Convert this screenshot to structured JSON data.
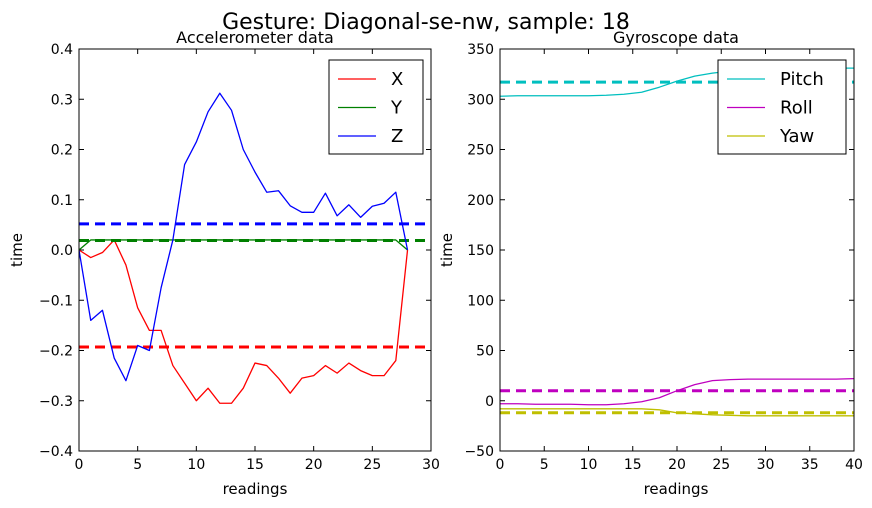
{
  "figure": {
    "title": "Gesture: Diagonal-se-nw, sample: 18"
  },
  "chart_data": [
    {
      "type": "line",
      "title": "Accelerometer data",
      "xlabel": "readings",
      "ylabel": "time",
      "xlim": [
        0,
        30
      ],
      "ylim": [
        -0.4,
        0.4
      ],
      "xticks": [
        0,
        5,
        10,
        15,
        20,
        25,
        30
      ],
      "yticks": [
        -0.4,
        -0.3,
        -0.2,
        -0.1,
        0.0,
        0.1,
        0.2,
        0.3,
        0.4
      ],
      "xtick_labels": [
        "0",
        "5",
        "10",
        "15",
        "20",
        "25",
        "30"
      ],
      "ytick_labels": [
        "−0.4",
        "−0.3",
        "−0.2",
        "−0.1",
        "0.0",
        "0.1",
        "0.2",
        "0.3",
        "0.4"
      ],
      "legend_position": "top-right",
      "series": [
        {
          "name": "X",
          "color": "#ff0000",
          "x": [
            0,
            1,
            2,
            3,
            4,
            5,
            6,
            7,
            8,
            9,
            10,
            11,
            12,
            13,
            14,
            15,
            16,
            17,
            18,
            19,
            20,
            21,
            22,
            23,
            24,
            25,
            26,
            27,
            28
          ],
          "values": [
            0.0,
            -0.015,
            -0.005,
            0.02,
            -0.03,
            -0.115,
            -0.16,
            -0.16,
            -0.23,
            -0.265,
            -0.3,
            -0.275,
            -0.305,
            -0.305,
            -0.275,
            -0.225,
            -0.23,
            -0.255,
            -0.285,
            -0.255,
            -0.25,
            -0.23,
            -0.245,
            -0.225,
            -0.24,
            -0.25,
            -0.25,
            -0.22,
            0.0
          ],
          "mean": -0.193
        },
        {
          "name": "Y",
          "color": "#008000",
          "x": [
            0,
            1,
            2,
            3,
            4,
            5,
            6,
            7,
            8,
            9,
            10,
            11,
            12,
            13,
            14,
            15,
            16,
            17,
            18,
            19,
            20,
            21,
            22,
            23,
            24,
            25,
            26,
            27,
            28
          ],
          "values": [
            0.0,
            0.02,
            0.02,
            0.02,
            0.02,
            0.02,
            0.02,
            0.02,
            0.02,
            0.02,
            0.02,
            0.02,
            0.02,
            0.02,
            0.02,
            0.02,
            0.02,
            0.02,
            0.02,
            0.02,
            0.02,
            0.02,
            0.02,
            0.02,
            0.02,
            0.02,
            0.02,
            0.02,
            0.0
          ],
          "mean": 0.019
        },
        {
          "name": "Z",
          "color": "#0000ff",
          "x": [
            0,
            1,
            2,
            3,
            4,
            5,
            6,
            7,
            8,
            9,
            10,
            11,
            12,
            13,
            14,
            15,
            16,
            17,
            18,
            19,
            20,
            21,
            22,
            23,
            24,
            25,
            26,
            27,
            28
          ],
          "values": [
            0.0,
            -0.14,
            -0.12,
            -0.215,
            -0.26,
            -0.19,
            -0.2,
            -0.075,
            0.02,
            0.17,
            0.215,
            0.275,
            0.312,
            0.278,
            0.2,
            0.155,
            0.115,
            0.118,
            0.088,
            0.075,
            0.075,
            0.113,
            0.068,
            0.09,
            0.065,
            0.087,
            0.093,
            0.115,
            0.0
          ],
          "mean": 0.052
        }
      ]
    },
    {
      "type": "line",
      "title": "Gyroscope data",
      "xlabel": "readings",
      "ylabel": "time",
      "xlim": [
        0,
        40
      ],
      "ylim": [
        -50,
        350
      ],
      "xticks": [
        0,
        5,
        10,
        15,
        20,
        25,
        30,
        35,
        40
      ],
      "yticks": [
        -50,
        0,
        50,
        100,
        150,
        200,
        250,
        300,
        350
      ],
      "xtick_labels": [
        "0",
        "5",
        "10",
        "15",
        "20",
        "25",
        "30",
        "35",
        "40"
      ],
      "ytick_labels": [
        "−50",
        "0",
        "50",
        "100",
        "150",
        "200",
        "250",
        "300",
        "350"
      ],
      "legend_position": "top-right",
      "series": [
        {
          "name": "Pitch",
          "color": "#00bfbf",
          "x": [
            0,
            2,
            4,
            6,
            8,
            10,
            12,
            14,
            16,
            18,
            20,
            22,
            24,
            26,
            28,
            30,
            32,
            34,
            36,
            38,
            40
          ],
          "values": [
            303,
            303.5,
            303.5,
            303.5,
            303.5,
            303.5,
            304,
            305,
            307,
            312,
            318,
            323,
            326,
            328,
            329,
            330,
            331,
            331,
            331,
            331,
            331
          ],
          "mean": 317
        },
        {
          "name": "Roll",
          "color": "#bf00bf",
          "x": [
            0,
            2,
            4,
            6,
            8,
            10,
            12,
            14,
            16,
            18,
            20,
            22,
            24,
            26,
            28,
            30,
            32,
            34,
            36,
            38,
            40
          ],
          "values": [
            -3,
            -3,
            -3.5,
            -3.5,
            -3.5,
            -4,
            -4,
            -3,
            -1,
            3,
            10,
            16,
            20,
            21,
            21.5,
            21.5,
            21.5,
            21.5,
            21.5,
            21.5,
            22
          ],
          "mean": 10
        },
        {
          "name": "Yaw",
          "color": "#bfbf00",
          "x": [
            0,
            2,
            4,
            6,
            8,
            10,
            12,
            14,
            16,
            18,
            20,
            22,
            24,
            26,
            28,
            30,
            32,
            34,
            36,
            38,
            40
          ],
          "values": [
            -8,
            -8,
            -8,
            -8,
            -8,
            -8,
            -8,
            -8,
            -8,
            -9,
            -12,
            -13,
            -14,
            -14.5,
            -15,
            -15,
            -15,
            -15,
            -15,
            -15,
            -15
          ],
          "mean": -12
        }
      ]
    }
  ]
}
